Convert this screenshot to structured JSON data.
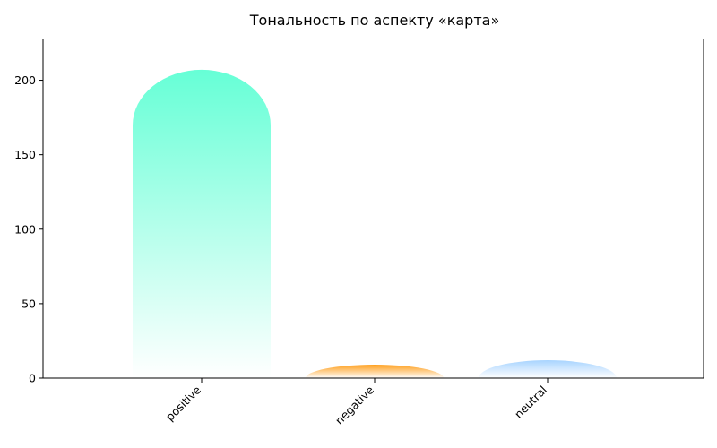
{
  "chart_data": {
    "type": "bar",
    "title": "Тональность по аспекту «карта»",
    "xlabel": "",
    "ylabel": "",
    "categories": [
      "positive",
      "negative",
      "neutral"
    ],
    "values": [
      207,
      9,
      12
    ],
    "ylim": [
      0,
      228
    ],
    "yticks": [
      0,
      50,
      100,
      150,
      200
    ],
    "grid": false,
    "legend": "none",
    "colors": [
      "#66ffd6",
      "#ff9f1c",
      "#a8d4ff"
    ]
  }
}
